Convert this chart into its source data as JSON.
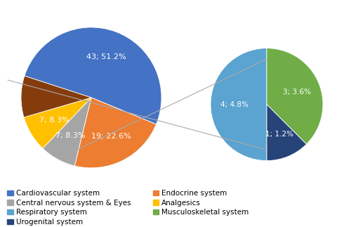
{
  "main_pie": {
    "values": [
      43,
      19,
      7,
      7,
      8
    ],
    "display_labels": [
      "43; 51.2%",
      "19; 22.6%",
      "7; 8.3%",
      "7; 8.3%",
      ""
    ],
    "colors": [
      "#4472C4",
      "#ED7D31",
      "#A5A5A5",
      "#FFC000",
      "#843C0C"
    ],
    "startangle": 162,
    "label_r": 0.62
  },
  "small_pie": {
    "values": [
      4,
      3,
      1
    ],
    "display_labels": [
      "4; 4.8%",
      "3; 3.6%",
      "1; 1.2%"
    ],
    "colors": [
      "#5BA3D0",
      "#70AD47",
      "#264478"
    ],
    "startangle": 270,
    "label_r": 0.58
  },
  "legend_items_col1": [
    {
      "label": "Cardiovascular system",
      "color": "#4472C4"
    },
    {
      "label": "Central nervous system & Eyes",
      "color": "#A5A5A5"
    },
    {
      "label": "Respiratory system",
      "color": "#5BA3D0"
    },
    {
      "label": "Urogenital system",
      "color": "#264478"
    }
  ],
  "legend_items_col2": [
    {
      "label": "Endocrine system",
      "color": "#ED7D31"
    },
    {
      "label": "Analgesics",
      "color": "#FFC000"
    },
    {
      "label": "Musculoskeletal system",
      "color": "#70AD47"
    }
  ],
  "connector_color": "#AAAAAA",
  "background_color": "#FFFFFF",
  "label_fontsize": 8.0,
  "legend_fontsize": 7.5
}
